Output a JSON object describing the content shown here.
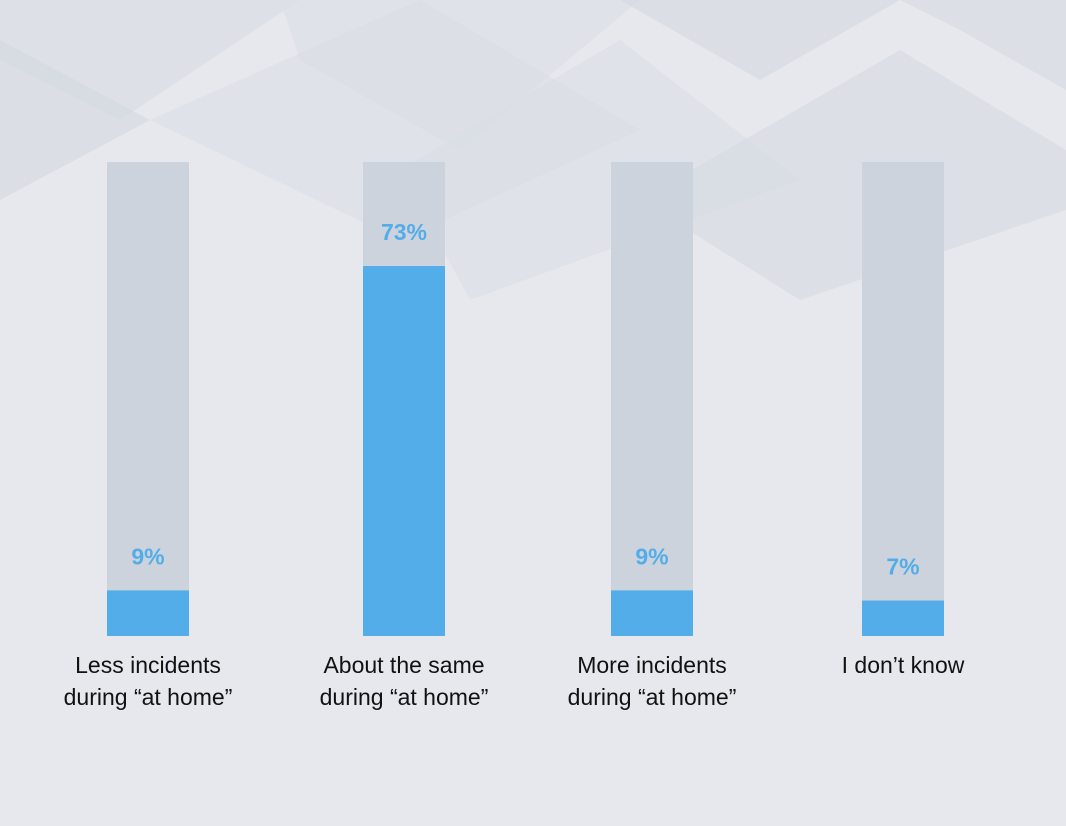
{
  "chart_data": {
    "type": "bar",
    "categories": [
      [
        "Less incidents",
        "during “at home”"
      ],
      [
        "About the same",
        "during “at home”"
      ],
      [
        "More incidents",
        "during “at home”"
      ],
      [
        "I don’t know"
      ]
    ],
    "values": [
      9,
      73,
      9,
      7
    ],
    "value_labels": [
      "9%",
      "73%",
      "9%",
      "7%"
    ],
    "ylim": [
      0,
      100
    ],
    "grid": false,
    "legend": false,
    "colors": {
      "bar": "#52ade9",
      "track": "#cdd3dc",
      "value_label": "#52ade9",
      "category_label": "#111111",
      "background": "#e6e8ee"
    }
  }
}
